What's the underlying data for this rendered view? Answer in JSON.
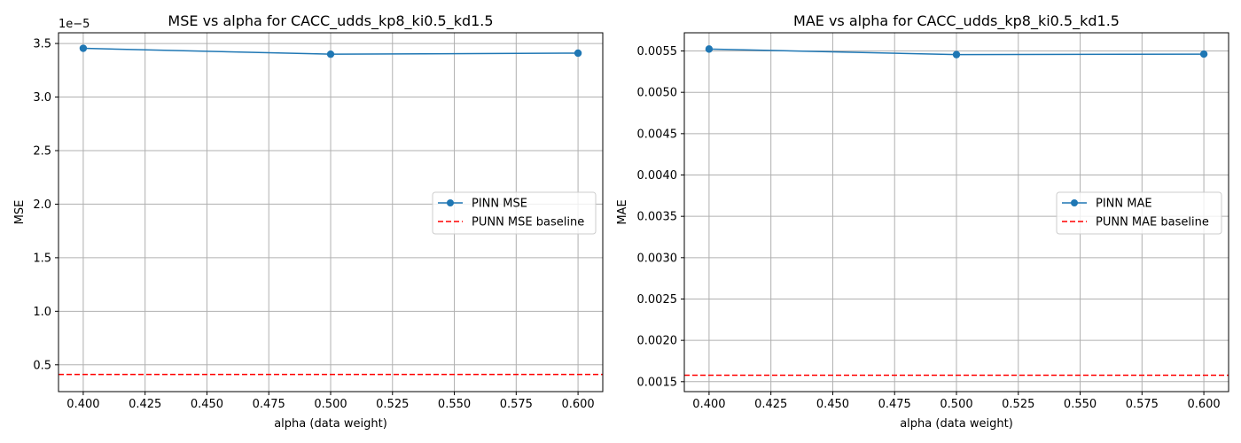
{
  "colors": {
    "series": "#1f77b4",
    "baseline": "#ff0000",
    "grid": "#b0b0b0"
  },
  "chart_data": [
    {
      "type": "line",
      "title": "MSE vs alpha for CACC_udds_kp8_ki0.5_kd1.5",
      "xlabel": "alpha (data weight)",
      "ylabel": "MSE",
      "y_offset_text": "1e−5",
      "xlim": [
        0.39,
        0.61
      ],
      "ylim": [
        0.25,
        3.6
      ],
      "x_ticks": [
        0.4,
        0.425,
        0.45,
        0.475,
        0.5,
        0.525,
        0.55,
        0.575,
        0.6
      ],
      "x_tick_labels": [
        "0.400",
        "0.425",
        "0.450",
        "0.475",
        "0.500",
        "0.525",
        "0.550",
        "0.575",
        "0.600"
      ],
      "y_ticks": [
        0.5,
        1.0,
        1.5,
        2.0,
        2.5,
        3.0,
        3.5
      ],
      "y_tick_labels": [
        "0.5",
        "1.0",
        "1.5",
        "2.0",
        "2.5",
        "3.0",
        "3.5"
      ],
      "grid": true,
      "legend_position": "center-right",
      "series": [
        {
          "name": "PINN MSE",
          "style": "line-marker",
          "x": [
            0.4,
            0.5,
            0.6
          ],
          "values": [
            3.455,
            3.4,
            3.41
          ]
        },
        {
          "name": "PUNN MSE baseline",
          "style": "dashed",
          "value": 0.41
        }
      ]
    },
    {
      "type": "line",
      "title": "MAE vs alpha for CACC_udds_kp8_ki0.5_kd1.5",
      "xlabel": "alpha (data weight)",
      "ylabel": "MAE",
      "xlim": [
        0.39,
        0.61
      ],
      "ylim": [
        0.00138,
        0.00572
      ],
      "x_ticks": [
        0.4,
        0.425,
        0.45,
        0.475,
        0.5,
        0.525,
        0.55,
        0.575,
        0.6
      ],
      "x_tick_labels": [
        "0.400",
        "0.425",
        "0.450",
        "0.475",
        "0.500",
        "0.525",
        "0.550",
        "0.575",
        "0.600"
      ],
      "y_ticks": [
        0.0015,
        0.002,
        0.0025,
        0.003,
        0.0035,
        0.004,
        0.0045,
        0.005,
        0.0055
      ],
      "y_tick_labels": [
        "0.0015",
        "0.0020",
        "0.0025",
        "0.0030",
        "0.0035",
        "0.0040",
        "0.0045",
        "0.0050",
        "0.0055"
      ],
      "grid": true,
      "legend_position": "center-right",
      "series": [
        {
          "name": "PINN MAE",
          "style": "line-marker",
          "x": [
            0.4,
            0.5,
            0.6
          ],
          "values": [
            0.005523,
            0.005456,
            0.005462
          ]
        },
        {
          "name": "PUNN MAE baseline",
          "style": "dashed",
          "value": 0.001578
        }
      ]
    }
  ]
}
